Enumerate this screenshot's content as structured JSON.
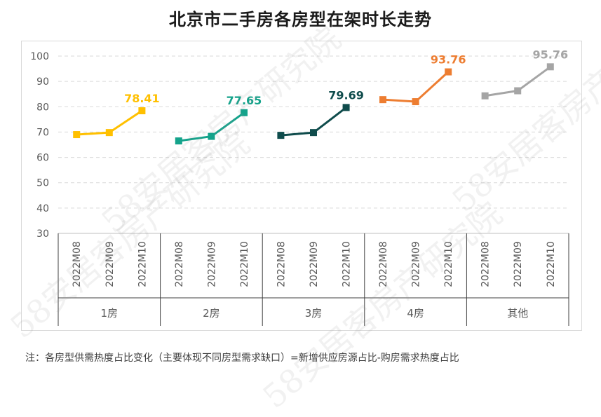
{
  "title": "北京市二手房各房型在架时长走势",
  "footnote": "注：各房型供需热度占比变化（主要体现不同房型需求缺口）=新增供应房源占比-购房需求热度占比",
  "watermark": "58安居客房产研究院",
  "chart_data": {
    "type": "line",
    "title": "北京市二手房各房型在架时长走势",
    "ylim": [
      30,
      100
    ],
    "yticks": [
      30,
      40,
      50,
      60,
      70,
      80,
      90,
      100
    ],
    "grid": true,
    "months": [
      "2022M08",
      "2022M09",
      "2022M10"
    ],
    "groups": [
      {
        "name": "1房",
        "values": [
          69.0,
          69.8,
          78.41
        ],
        "label": "78.41",
        "color": "#FFC000"
      },
      {
        "name": "2房",
        "values": [
          66.5,
          68.3,
          77.65
        ],
        "label": "77.65",
        "color": "#14A38B"
      },
      {
        "name": "3房",
        "values": [
          68.7,
          69.8,
          79.69
        ],
        "label": "79.69",
        "color": "#0F4C4C"
      },
      {
        "name": "4房",
        "values": [
          82.8,
          82.0,
          93.76
        ],
        "label": "93.76",
        "color": "#ED7D31"
      },
      {
        "name": "其他",
        "values": [
          84.3,
          86.3,
          95.76
        ],
        "label": "95.76",
        "color": "#A5A5A5"
      }
    ]
  }
}
